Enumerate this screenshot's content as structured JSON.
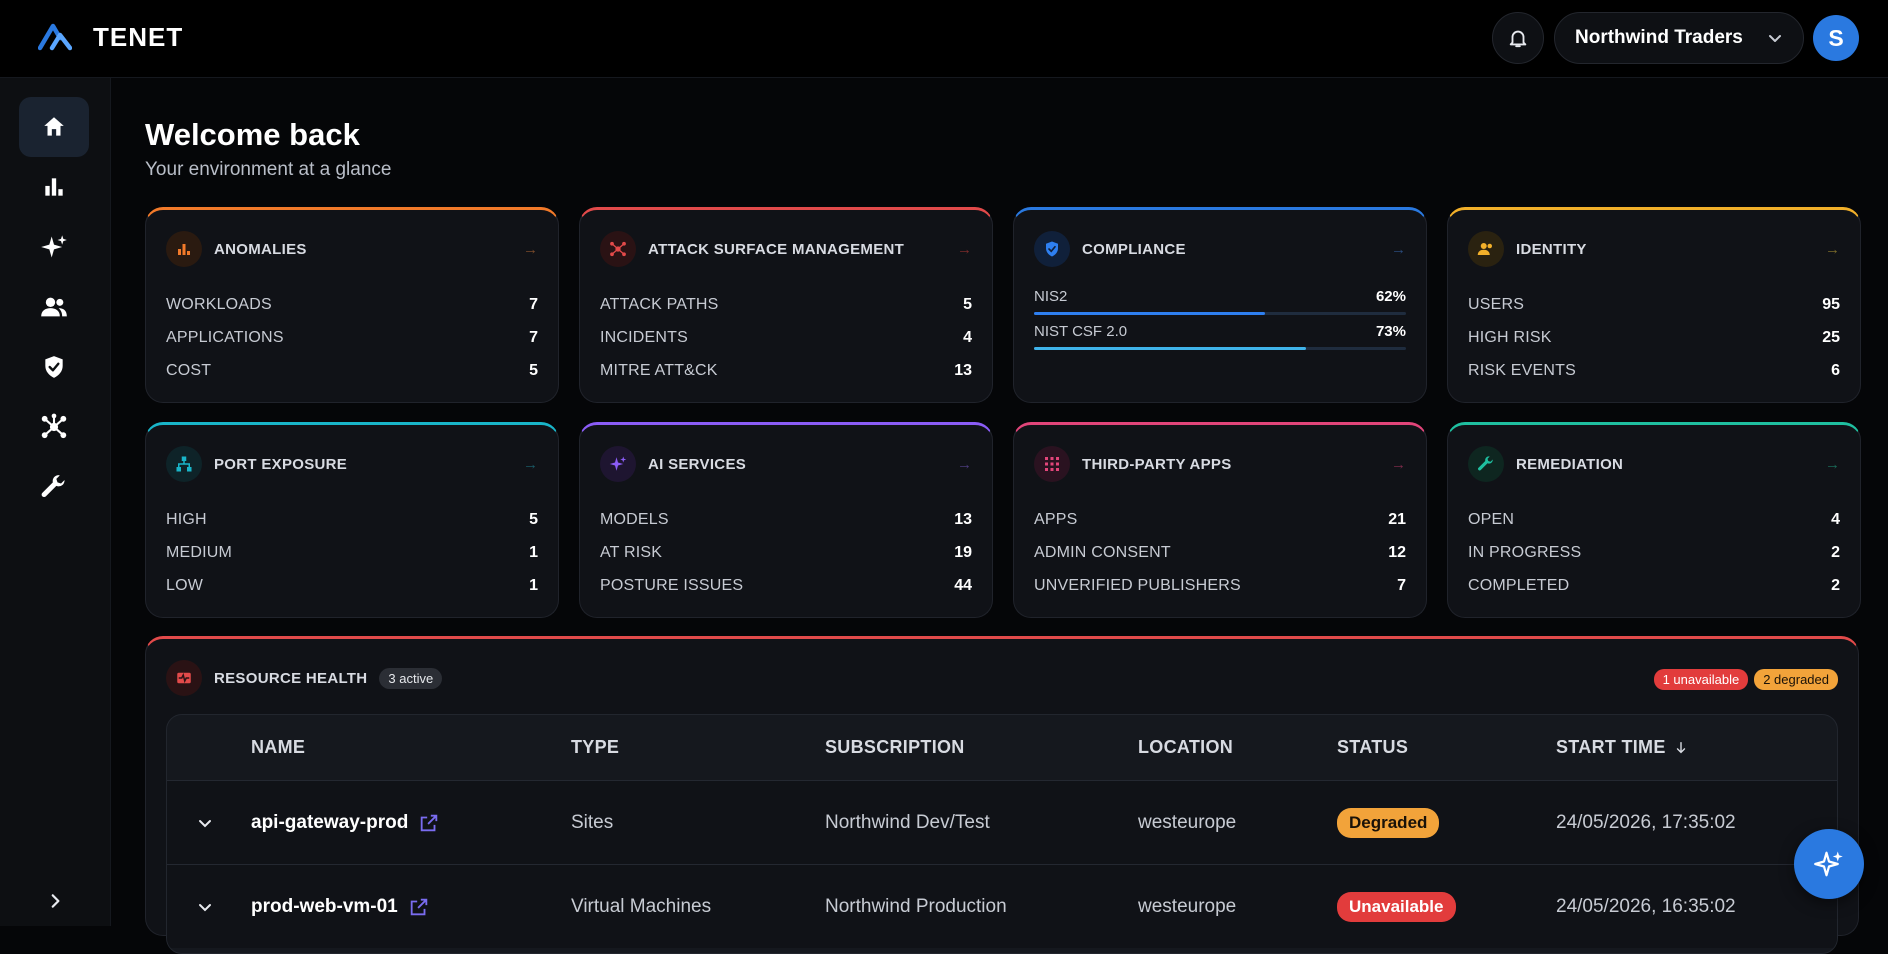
{
  "app": {
    "brand": "TENET"
  },
  "header": {
    "org_name": "Northwind Traders",
    "avatar_initial": "S"
  },
  "page": {
    "title": "Welcome back",
    "subtitle": "Your environment at a glance"
  },
  "cards": {
    "anomalies": {
      "title": "ANOMALIES",
      "color": "#f27a2a",
      "rows": [
        {
          "label": "WORKLOADS",
          "value": "7"
        },
        {
          "label": "APPLICATIONS",
          "value": "7"
        },
        {
          "label": "COST",
          "value": "5"
        }
      ]
    },
    "asm": {
      "title": "ATTACK SURFACE MANAGEMENT",
      "color": "#e24a4a",
      "rows": [
        {
          "label": "ATTACK PATHS",
          "value": "5"
        },
        {
          "label": "INCIDENTS",
          "value": "4"
        },
        {
          "label": "MITRE ATT&CK",
          "value": "13"
        }
      ]
    },
    "compliance": {
      "title": "COMPLIANCE",
      "color": "#2a79e0",
      "bars": [
        {
          "label": "NIS2",
          "value": "62%",
          "fraction": 0.62,
          "color": "#2e7ff0"
        },
        {
          "label": "NIST CSF 2.0",
          "value": "73%",
          "fraction": 0.73,
          "color": "#3fb3ea"
        }
      ]
    },
    "identity": {
      "title": "IDENTITY",
      "color": "#f2b02a",
      "rows": [
        {
          "label": "USERS",
          "value": "95"
        },
        {
          "label": "HIGH RISK",
          "value": "25"
        },
        {
          "label": "RISK EVENTS",
          "value": "6"
        }
      ]
    },
    "port": {
      "title": "PORT EXPOSURE",
      "color": "#19b5c9",
      "rows": [
        {
          "label": "HIGH",
          "value": "5"
        },
        {
          "label": "MEDIUM",
          "value": "1"
        },
        {
          "label": "LOW",
          "value": "1"
        }
      ]
    },
    "ai": {
      "title": "AI SERVICES",
      "color": "#8b5cf6",
      "rows": [
        {
          "label": "MODELS",
          "value": "13"
        },
        {
          "label": "AT RISK",
          "value": "19"
        },
        {
          "label": "POSTURE ISSUES",
          "value": "44"
        }
      ]
    },
    "thirdparty": {
      "title": "THIRD-PARTY APPS",
      "color": "#e2457a",
      "rows": [
        {
          "label": "APPS",
          "value": "21"
        },
        {
          "label": "ADMIN CONSENT",
          "value": "12"
        },
        {
          "label": "UNVERIFIED PUBLISHERS",
          "value": "7"
        }
      ]
    },
    "remediation": {
      "title": "REMEDIATION",
      "color": "#1fbfa0",
      "rows": [
        {
          "label": "OPEN",
          "value": "4"
        },
        {
          "label": "IN PROGRESS",
          "value": "2"
        },
        {
          "label": "COMPLETED",
          "value": "2"
        }
      ]
    }
  },
  "resource_health": {
    "title": "RESOURCE HEALTH",
    "active_chip": "3 active",
    "badge_unavailable": "1 unavailable",
    "badge_degraded": "2 degraded",
    "columns": {
      "name": "NAME",
      "type": "TYPE",
      "subscription": "SUBSCRIPTION",
      "location": "LOCATION",
      "status": "STATUS",
      "start_time": "START TIME"
    },
    "rows": [
      {
        "name": "api-gateway-prod",
        "type": "Sites",
        "subscription": "Northwind Dev/Test",
        "location": "westeurope",
        "status": "Degraded",
        "start_time": "24/05/2026, 17:35:02"
      },
      {
        "name": "prod-web-vm-01",
        "type": "Virtual Machines",
        "subscription": "Northwind Production",
        "location": "westeurope",
        "status": "Unavailable",
        "start_time": "24/05/2026, 16:35:02"
      }
    ]
  }
}
